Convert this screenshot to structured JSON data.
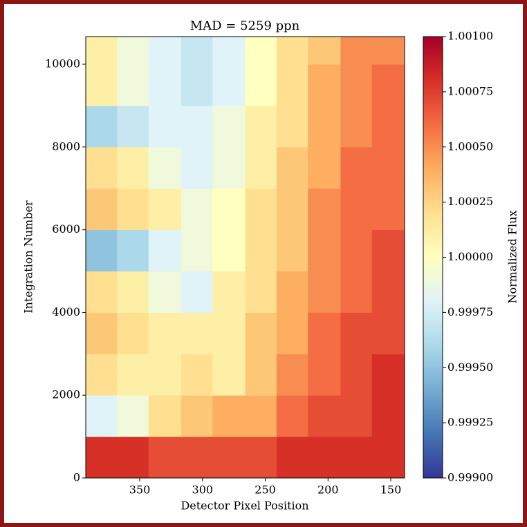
{
  "chart_data": {
    "type": "heatmap",
    "title": "MAD = 5259 ppn",
    "xlabel": "Detector Pixel Position",
    "ylabel": "Integration Number",
    "colorbar_label": "Normalized Flux",
    "colormap": "RdYlBu_r",
    "x_edges": [
      393,
      368,
      343,
      317,
      292,
      266,
      241,
      216,
      190,
      165,
      139
    ],
    "y_edges": [
      0,
      1000,
      2000,
      3000,
      4000,
      5000,
      6000,
      7000,
      8000,
      9000,
      10000,
      10668
    ],
    "values": [
      [
        1.0008,
        1.0008,
        1.0007,
        1.0007,
        1.0007,
        1.0007,
        1.0008,
        1.0008,
        1.0008,
        1.0008
      ],
      [
        0.9998,
        0.9999,
        1.0002,
        1.0003,
        1.0004,
        1.0004,
        1.0006,
        1.0007,
        1.0007,
        1.0008
      ],
      [
        1.0002,
        1.0001,
        1.0001,
        1.0002,
        1.0001,
        1.0003,
        1.0005,
        1.0006,
        1.0007,
        1.0008
      ],
      [
        1.0003,
        1.0002,
        1.0001,
        1.0001,
        1.0001,
        1.0003,
        1.0004,
        1.0006,
        1.0007,
        1.0007
      ],
      [
        1.0002,
        1.0001,
        0.9999,
        0.9998,
        1.0001,
        1.0002,
        1.0004,
        1.0005,
        1.0006,
        1.0007
      ],
      [
        0.9995,
        0.9996,
        0.9998,
        0.9999,
        1.0,
        1.0002,
        1.0003,
        1.0005,
        1.0006,
        1.0007
      ],
      [
        1.0003,
        1.0002,
        1.0001,
        0.9999,
        1.0,
        1.0002,
        1.0003,
        1.0005,
        1.0006,
        1.0006
      ],
      [
        1.0002,
        1.0001,
        0.9999,
        0.9998,
        0.9999,
        1.0001,
        1.0003,
        1.0004,
        1.0006,
        1.0006
      ],
      [
        0.9996,
        0.9997,
        0.9998,
        0.9998,
        0.9999,
        1.0001,
        1.0002,
        1.0004,
        1.0005,
        1.0006
      ],
      [
        1.0001,
        0.9999,
        0.9998,
        0.9997,
        0.9998,
        1.0,
        1.0002,
        1.0004,
        1.0005,
        1.0006
      ],
      [
        1.0001,
        0.9999,
        0.9998,
        0.9997,
        0.9998,
        1.0,
        1.0002,
        1.0003,
        1.0005,
        1.0005
      ]
    ],
    "xlim": [
      393,
      139
    ],
    "ylim": [
      0,
      10668
    ],
    "xticks": [
      350,
      300,
      250,
      200,
      150
    ],
    "yticks": [
      0,
      2000,
      4000,
      6000,
      8000,
      10000
    ],
    "clim": [
      0.999,
      1.001
    ],
    "cticks": [
      {
        "value": 0.999,
        "label": "0.99900"
      },
      {
        "value": 0.99925,
        "label": "0.99925"
      },
      {
        "value": 0.9995,
        "label": "0.99950"
      },
      {
        "value": 0.99975,
        "label": "0.99975"
      },
      {
        "value": 1.0,
        "label": "1.00000"
      },
      {
        "value": 1.00025,
        "label": "1.00025"
      },
      {
        "value": 1.0005,
        "label": "1.00050"
      },
      {
        "value": 1.00075,
        "label": "1.00075"
      },
      {
        "value": 1.001,
        "label": "1.00100"
      }
    ]
  }
}
